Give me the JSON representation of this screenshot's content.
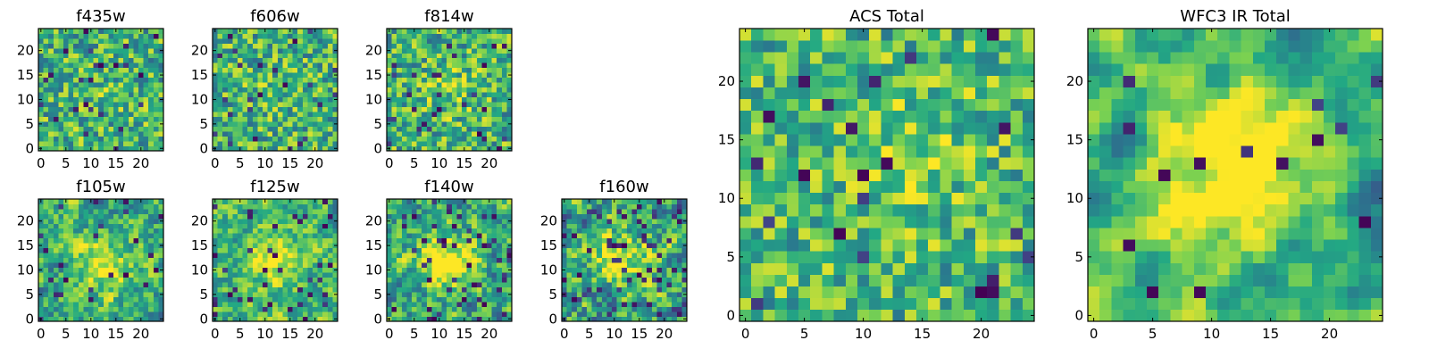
{
  "figure": {
    "background": "#ffffff"
  },
  "colormap": {
    "name": "viridis",
    "stops": [
      "#440154",
      "#414487",
      "#2a788e",
      "#22a884",
      "#7ad151",
      "#fde725"
    ]
  },
  "chart_data": [
    {
      "id": "f435w",
      "type": "heatmap",
      "title": "f435w",
      "grid": false,
      "xlim": [
        -0.5,
        24.5
      ],
      "ylim": [
        -0.5,
        24.5
      ],
      "xticks": [
        0,
        5,
        10,
        15,
        20
      ],
      "yticks": [
        0,
        5,
        10,
        15,
        20
      ],
      "pattern": "noise",
      "seed": 11,
      "peak": [
        12,
        12
      ],
      "peak_strength": 0.05,
      "dark_fraction": 0.04,
      "low": 0.35
    },
    {
      "id": "f606w",
      "type": "heatmap",
      "title": "f606w",
      "grid": false,
      "xlim": [
        -0.5,
        24.5
      ],
      "ylim": [
        -0.5,
        24.5
      ],
      "xticks": [
        0,
        5,
        10,
        15,
        20
      ],
      "yticks": [
        0,
        5,
        10,
        15,
        20
      ],
      "pattern": "noise",
      "seed": 23,
      "peak": [
        12,
        12
      ],
      "peak_strength": 0.05,
      "dark_fraction": 0.04,
      "low": 0.35
    },
    {
      "id": "f814w",
      "type": "heatmap",
      "title": "f814w",
      "grid": false,
      "xlim": [
        -0.5,
        24.5
      ],
      "ylim": [
        -0.5,
        24.5
      ],
      "xticks": [
        0,
        5,
        10,
        15,
        20
      ],
      "yticks": [
        0,
        5,
        10,
        15,
        20
      ],
      "pattern": "noise",
      "seed": 37,
      "peak": [
        12,
        12
      ],
      "peak_strength": 0.12,
      "dark_fraction": 0.04,
      "low": 0.35
    },
    {
      "id": "f105w",
      "type": "heatmap",
      "title": "f105w",
      "grid": false,
      "xlim": [
        -0.5,
        24.5
      ],
      "ylim": [
        -0.5,
        24.5
      ],
      "xticks": [
        0,
        5,
        10,
        15,
        20
      ],
      "yticks": [
        0,
        5,
        10,
        15,
        20
      ],
      "pattern": "blob",
      "seed": 41,
      "peak": [
        13,
        11
      ],
      "peak_strength": 0.35,
      "dark_fraction": 0.05,
      "low": 0.3
    },
    {
      "id": "f125w",
      "type": "heatmap",
      "title": "f125w",
      "grid": false,
      "xlim": [
        -0.5,
        24.5
      ],
      "ylim": [
        -0.5,
        24.5
      ],
      "xticks": [
        0,
        5,
        10,
        15,
        20
      ],
      "yticks": [
        0,
        5,
        10,
        15,
        20
      ],
      "pattern": "blob",
      "seed": 53,
      "peak": [
        12,
        12
      ],
      "peak_strength": 0.3,
      "dark_fraction": 0.05,
      "low": 0.35
    },
    {
      "id": "f140w",
      "type": "heatmap",
      "title": "f140w",
      "grid": false,
      "xlim": [
        -0.5,
        24.5
      ],
      "ylim": [
        -0.5,
        24.5
      ],
      "xticks": [
        0,
        5,
        10,
        15,
        20
      ],
      "yticks": [
        0,
        5,
        10,
        15,
        20
      ],
      "pattern": "blob",
      "seed": 67,
      "peak": [
        12,
        12
      ],
      "peak_strength": 0.45,
      "dark_fraction": 0.08,
      "low": 0.25
    },
    {
      "id": "f160w",
      "type": "heatmap",
      "title": "f160w",
      "grid": false,
      "xlim": [
        -0.5,
        24.5
      ],
      "ylim": [
        -0.5,
        24.5
      ],
      "xticks": [
        0,
        5,
        10,
        15,
        20
      ],
      "yticks": [
        0,
        5,
        10,
        15,
        20
      ],
      "pattern": "blob",
      "seed": 79,
      "peak": [
        11,
        12
      ],
      "peak_strength": 0.45,
      "dark_fraction": 0.1,
      "low": 0.2
    },
    {
      "id": "acs-total",
      "type": "heatmap",
      "title": "ACS Total",
      "grid": false,
      "xlim": [
        -0.5,
        24.5
      ],
      "ylim": [
        -0.5,
        24.5
      ],
      "xticks": [
        0,
        5,
        10,
        15,
        20
      ],
      "yticks": [
        0,
        5,
        10,
        15,
        20
      ],
      "pattern": "noise",
      "seed": 97,
      "peak": [
        14,
        14
      ],
      "peak_strength": 0.15,
      "dark_fraction": 0.04,
      "low": 0.4
    },
    {
      "id": "wfc3-ir-total",
      "type": "heatmap",
      "title": "WFC3 IR Total",
      "grid": false,
      "xlim": [
        -0.5,
        24.5
      ],
      "ylim": [
        -0.5,
        24.5
      ],
      "xticks": [
        0,
        5,
        10,
        15,
        20
      ],
      "yticks": [
        0,
        5,
        10,
        15,
        20
      ],
      "pattern": "smooth",
      "seed": 113,
      "peak": [
        12,
        12
      ],
      "peak_strength": 0.55,
      "dark_fraction": 0.03,
      "low": 0.3
    }
  ]
}
